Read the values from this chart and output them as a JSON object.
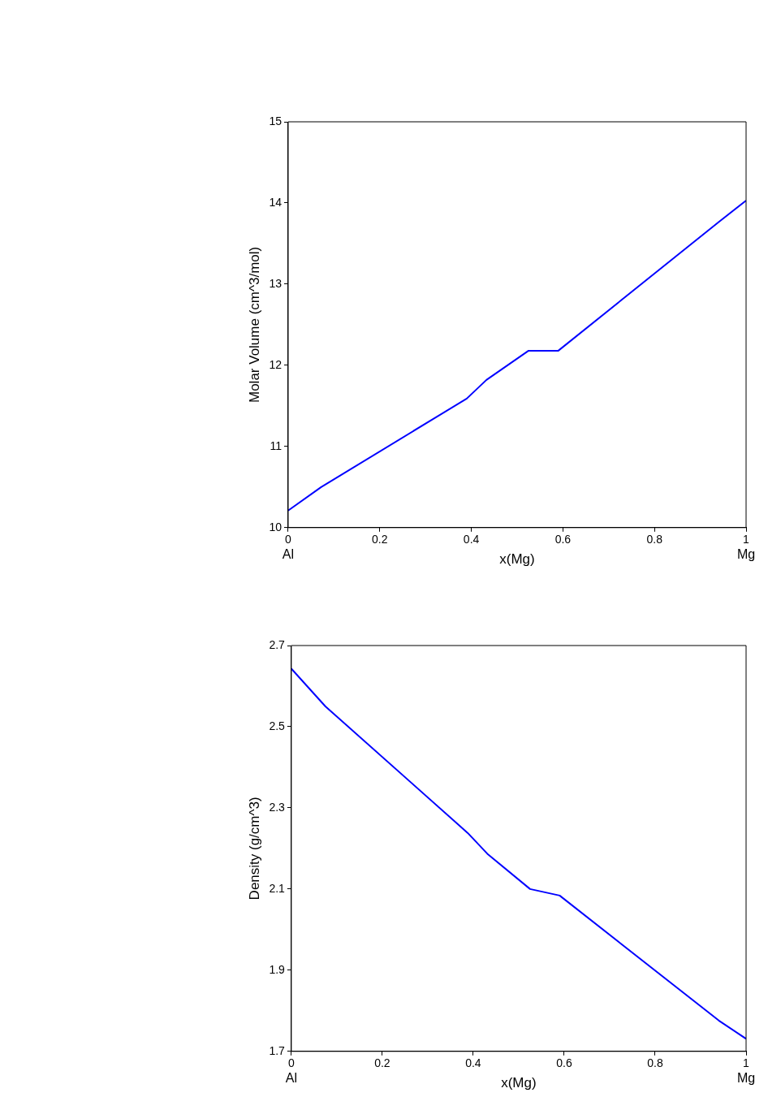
{
  "chart_data": [
    {
      "type": "line",
      "xlabel": "x(Mg)",
      "ylabel": "Molar Volume (cm^3/mol)",
      "annotations": [
        "Al",
        "Mg"
      ],
      "grid": false,
      "legend": false,
      "marker": "none",
      "line_style": "solid",
      "x": [
        0,
        0.072,
        0.39,
        0.433,
        0.525,
        0.59,
        0.939,
        1
      ],
      "series": [
        {
          "color": "#0000ff",
          "values": [
            10.21,
            10.5,
            11.59,
            11.82,
            12.18,
            12.18,
            13.76,
            14.03
          ]
        }
      ],
      "xlim": [
        0,
        1
      ],
      "xticks": [
        0,
        0.2,
        0.4,
        0.6,
        0.8,
        1
      ],
      "ylim": [
        10,
        15
      ],
      "yticks": [
        10,
        11,
        12,
        13,
        14,
        15
      ]
    },
    {
      "type": "line",
      "xlabel": "x(Mg)",
      "ylabel": "Density (g/cm^3)",
      "annotations": [
        "Al",
        "Mg"
      ],
      "grid": false,
      "legend": false,
      "marker": "none",
      "line_style": "solid",
      "x": [
        0,
        0.075,
        0.388,
        0.431,
        0.525,
        0.59,
        0.94,
        1
      ],
      "series": [
        {
          "color": "#0000ff",
          "values": [
            2.643,
            2.55,
            2.238,
            2.187,
            2.1,
            2.084,
            1.776,
            1.731
          ]
        }
      ],
      "xlim": [
        0,
        1
      ],
      "xticks": [
        0,
        0.2,
        0.4,
        0.6,
        0.8,
        1
      ],
      "ylim": [
        1.7,
        2.7
      ],
      "yticks": [
        1.7,
        1.9,
        2.1,
        2.3,
        2.5,
        2.7
      ]
    }
  ]
}
